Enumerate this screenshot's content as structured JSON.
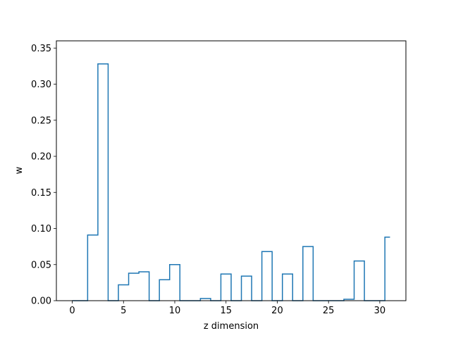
{
  "chart_data": {
    "type": "step",
    "title": "",
    "xlabel": "z dimension",
    "ylabel": "w",
    "xlim": [
      -1.55,
      32.55
    ],
    "ylim": [
      0,
      0.36
    ],
    "xticks": [
      0,
      5,
      10,
      15,
      20,
      25,
      30
    ],
    "xtick_labels": [
      "0",
      "5",
      "10",
      "15",
      "20",
      "25",
      "30"
    ],
    "yticks": [
      0.0,
      0.05,
      0.1,
      0.15,
      0.2,
      0.25,
      0.3,
      0.35
    ],
    "ytick_labels": [
      "0.00",
      "0.05",
      "0.10",
      "0.15",
      "0.20",
      "0.25",
      "0.30",
      "0.35"
    ],
    "grid": false,
    "line_color": "#1f77b4",
    "step_where": "mid",
    "series": [
      {
        "x": [
          0,
          1,
          2,
          3,
          4,
          5,
          6,
          7,
          8,
          9,
          10,
          11,
          12,
          13,
          14,
          15,
          16,
          17,
          18,
          19,
          20,
          21,
          22,
          23,
          24,
          25,
          26,
          27,
          28,
          29,
          30,
          31
        ],
        "values": [
          0.0,
          0.0,
          0.091,
          0.328,
          0.0,
          0.022,
          0.038,
          0.04,
          0.0,
          0.029,
          0.05,
          0.0,
          0.0,
          0.003,
          0.0,
          0.037,
          0.0,
          0.034,
          0.0,
          0.068,
          0.0,
          0.037,
          0.0,
          0.075,
          0.0,
          0.0,
          0.0,
          0.002,
          0.055,
          0.0,
          0.0,
          0.088
        ]
      }
    ]
  }
}
